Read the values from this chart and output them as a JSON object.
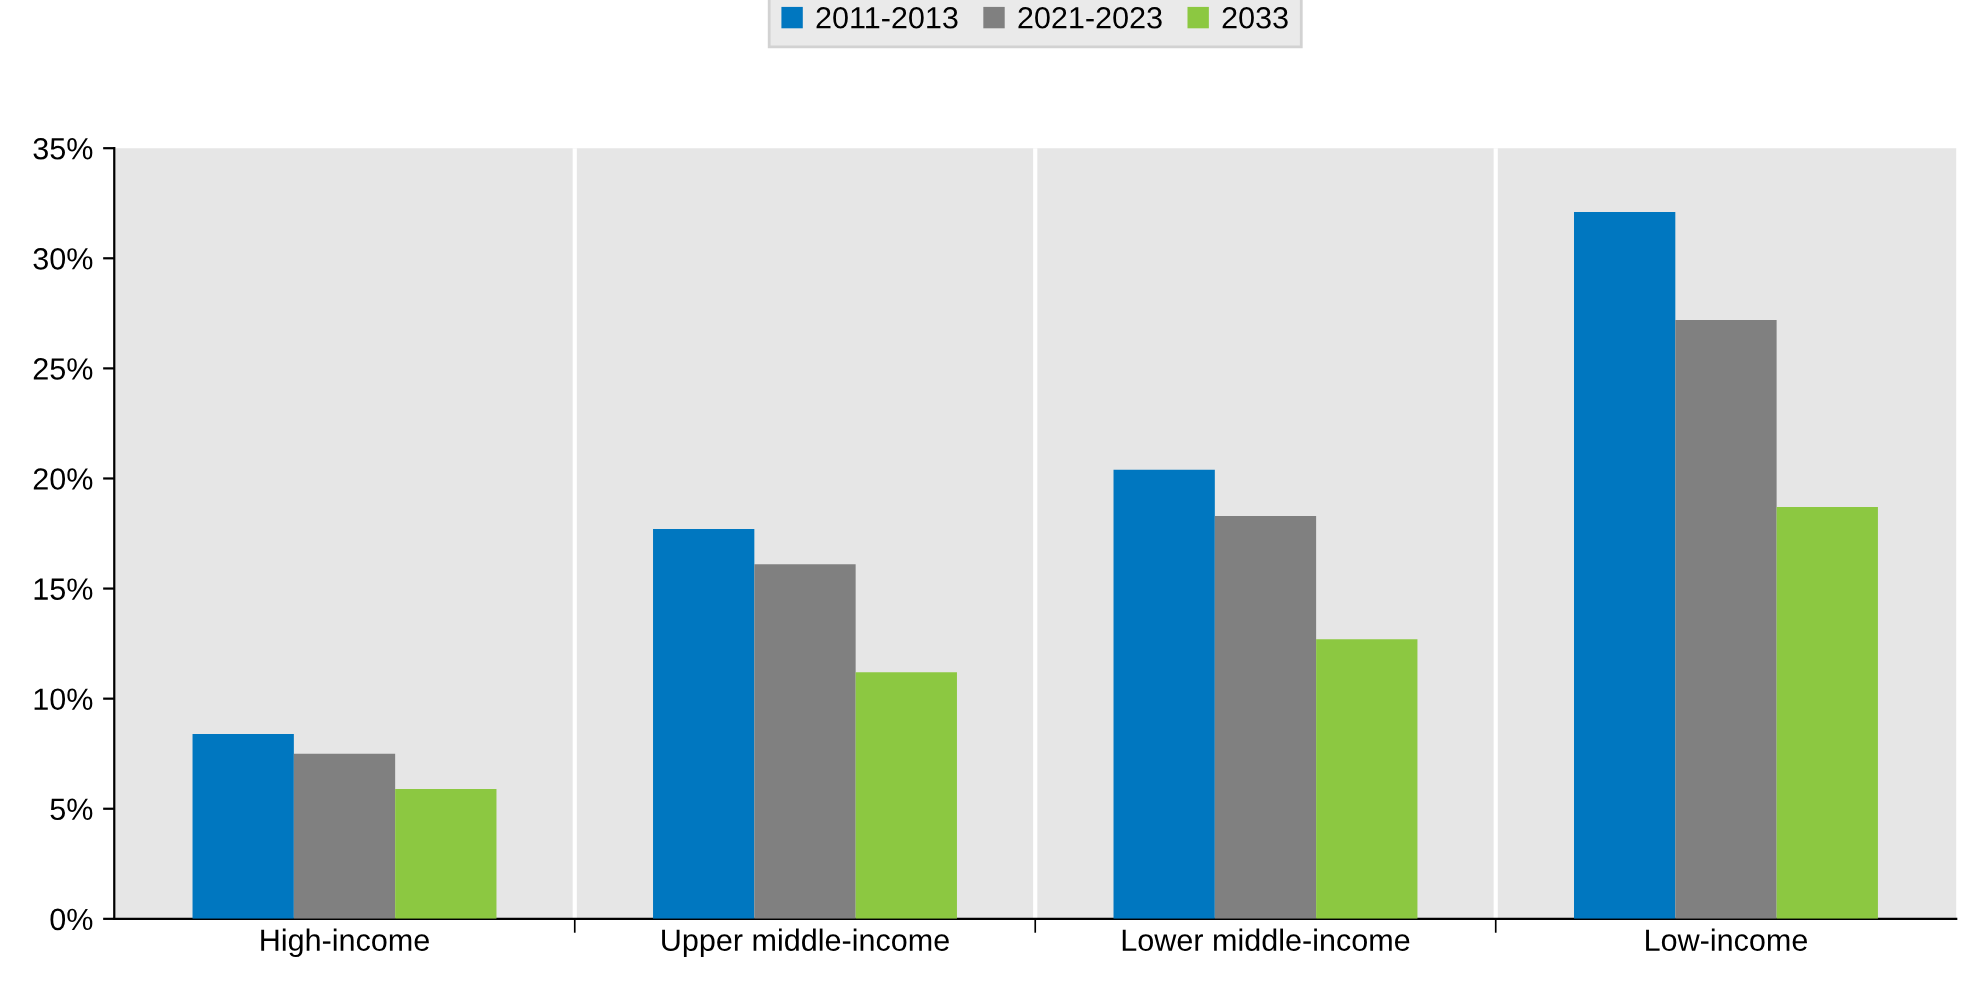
{
  "chart_data": {
    "type": "bar",
    "categories": [
      "High-income",
      "Upper middle-income",
      "Lower middle-income",
      "Low-income"
    ],
    "series": [
      {
        "name": "2011-2013",
        "color": "#0077c0",
        "values": [
          8.4,
          17.7,
          20.4,
          32.1
        ]
      },
      {
        "name": "2021-2023",
        "color": "#808080",
        "values": [
          7.5,
          16.1,
          18.3,
          27.2
        ]
      },
      {
        "name": "2033",
        "color": "#8cc841",
        "values": [
          5.9,
          11.2,
          12.7,
          18.7
        ]
      }
    ],
    "ylim": [
      0,
      35
    ],
    "yticks": [
      {
        "value": 0,
        "label": "0%"
      },
      {
        "value": 5,
        "label": "5%"
      },
      {
        "value": 10,
        "label": "10%"
      },
      {
        "value": 15,
        "label": "15%"
      },
      {
        "value": 20,
        "label": "20%"
      },
      {
        "value": 25,
        "label": "25%"
      },
      {
        "value": 30,
        "label": "30%"
      },
      {
        "value": 35,
        "label": "35%"
      }
    ],
    "grid": "x",
    "legend": "top"
  }
}
